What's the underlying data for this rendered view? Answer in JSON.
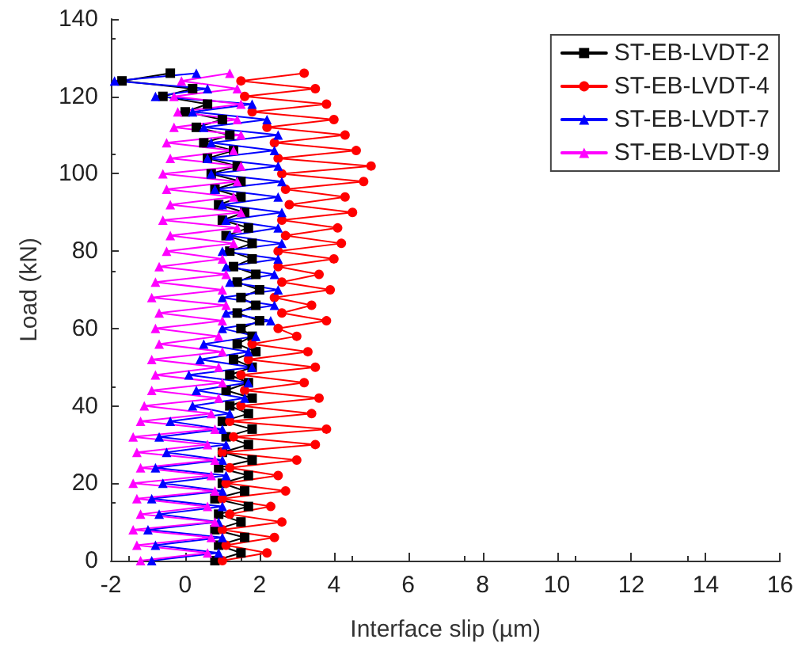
{
  "chart_data": {
    "type": "line",
    "xlabel": "Interface slip (µm)",
    "ylabel": "Load (kN)",
    "xlim": [
      -2,
      16
    ],
    "xticks": [
      -2,
      0,
      2,
      4,
      6,
      8,
      10,
      12,
      14,
      16
    ],
    "ylim": [
      0,
      140
    ],
    "yticks": [
      0,
      20,
      40,
      60,
      80,
      100,
      120,
      140
    ],
    "grid": false,
    "legend": "top right",
    "line_style": "solid",
    "series": [
      {
        "name": "ST-EB-LVDT-2",
        "color": "#000000",
        "marker": "square",
        "x": [
          0.8,
          1.5,
          0.9,
          1.6,
          0.8,
          1.5,
          0.9,
          1.7,
          0.8,
          1.6,
          1.0,
          1.7,
          0.9,
          1.8,
          1.0,
          1.7,
          1.1,
          1.8,
          1.0,
          1.7,
          1.2,
          1.8,
          1.1,
          1.7,
          1.2,
          1.8,
          1.3,
          1.9,
          1.4,
          1.8,
          1.5,
          2.0,
          1.4,
          1.9,
          1.5,
          2.0,
          1.4,
          1.9,
          1.3,
          1.8,
          1.2,
          1.8,
          1.1,
          1.7,
          1.0,
          1.6,
          0.9,
          1.5,
          0.8,
          1.5,
          0.7,
          1.4,
          0.6,
          1.3,
          0.5,
          1.2,
          0.3,
          1.0,
          0.0,
          0.6,
          -0.6,
          0.2,
          -1.7,
          -0.4
        ],
        "values": [
          0,
          2,
          4,
          6,
          8,
          10,
          12,
          14,
          16,
          18,
          20,
          22,
          24,
          26,
          28,
          30,
          32,
          34,
          36,
          38,
          40,
          42,
          44,
          46,
          48,
          50,
          52,
          54,
          56,
          58,
          60,
          62,
          64,
          66,
          68,
          70,
          72,
          74,
          76,
          78,
          80,
          82,
          84,
          86,
          88,
          90,
          92,
          94,
          96,
          98,
          100,
          102,
          104,
          106,
          108,
          110,
          112,
          114,
          116,
          118,
          120,
          122,
          124,
          126
        ]
      },
      {
        "name": "ST-EB-LVDT-4",
        "color": "#ff0000",
        "marker": "circle",
        "x": [
          1.0,
          2.2,
          1.1,
          2.4,
          1.0,
          2.6,
          1.2,
          2.3,
          1.0,
          2.7,
          1.1,
          2.5,
          1.2,
          3.0,
          1.0,
          3.5,
          1.3,
          3.8,
          1.2,
          3.4,
          1.5,
          3.6,
          1.6,
          3.2,
          1.5,
          3.5,
          1.7,
          3.3,
          1.8,
          3.0,
          2.5,
          3.8,
          2.6,
          3.4,
          2.4,
          3.9,
          2.6,
          3.6,
          2.5,
          4.0,
          2.5,
          4.2,
          2.7,
          4.1,
          2.6,
          4.5,
          2.8,
          4.3,
          2.7,
          4.8,
          2.6,
          5.0,
          2.5,
          4.6,
          2.4,
          4.3,
          2.2,
          4.0,
          1.8,
          3.8,
          1.6,
          3.5,
          1.5,
          3.2
        ],
        "values": [
          0,
          2,
          4,
          6,
          8,
          10,
          12,
          14,
          16,
          18,
          20,
          22,
          24,
          26,
          28,
          30,
          32,
          34,
          36,
          38,
          40,
          42,
          44,
          46,
          48,
          50,
          52,
          54,
          56,
          58,
          60,
          62,
          64,
          66,
          68,
          70,
          72,
          74,
          76,
          78,
          80,
          82,
          84,
          86,
          88,
          90,
          92,
          94,
          96,
          98,
          100,
          102,
          104,
          106,
          108,
          110,
          112,
          114,
          116,
          118,
          120,
          122,
          124,
          126
        ]
      },
      {
        "name": "ST-EB-LVDT-7",
        "color": "#0000ff",
        "marker": "triangle",
        "x": [
          -0.9,
          0.9,
          -0.8,
          1.0,
          -1.0,
          0.9,
          -0.7,
          1.0,
          -0.9,
          1.0,
          -0.6,
          1.1,
          -0.8,
          1.0,
          -0.5,
          1.1,
          -0.7,
          1.0,
          -0.4,
          1.2,
          0.2,
          1.6,
          0.3,
          1.7,
          0.1,
          1.8,
          0.4,
          1.7,
          0.5,
          1.9,
          1.0,
          2.3,
          1.1,
          2.4,
          1.0,
          2.5,
          1.2,
          2.4,
          1.1,
          2.5,
          1.0,
          2.6,
          1.2,
          2.5,
          1.1,
          2.6,
          1.0,
          2.5,
          0.8,
          2.6,
          0.7,
          2.5,
          0.6,
          2.4,
          0.7,
          2.5,
          0.5,
          2.2,
          0.2,
          1.8,
          -0.8,
          0.6,
          -1.9,
          0.3
        ],
        "values": [
          0,
          2,
          4,
          6,
          8,
          10,
          12,
          14,
          16,
          18,
          20,
          22,
          24,
          26,
          28,
          30,
          32,
          34,
          36,
          38,
          40,
          42,
          44,
          46,
          48,
          50,
          52,
          54,
          56,
          58,
          60,
          62,
          64,
          66,
          68,
          70,
          72,
          74,
          76,
          78,
          80,
          82,
          84,
          86,
          88,
          90,
          92,
          94,
          96,
          98,
          100,
          102,
          104,
          106,
          108,
          110,
          112,
          114,
          116,
          118,
          120,
          122,
          124,
          126
        ]
      },
      {
        "name": "ST-EB-LVDT-9",
        "color": "#ff00ff",
        "marker": "triangle",
        "x": [
          -1.2,
          0.6,
          -1.3,
          0.7,
          -1.4,
          0.8,
          -1.2,
          0.6,
          -1.3,
          0.8,
          -1.4,
          0.7,
          -1.2,
          0.8,
          -1.3,
          0.6,
          -1.4,
          0.8,
          -1.2,
          0.7,
          -1.1,
          0.9,
          -0.9,
          1.0,
          -0.8,
          0.9,
          -0.9,
          1.0,
          -0.7,
          0.9,
          -0.8,
          1.0,
          -0.7,
          1.1,
          -0.9,
          1.0,
          -0.8,
          1.1,
          -0.7,
          1.0,
          -0.5,
          1.3,
          -0.4,
          1.4,
          -0.6,
          1.5,
          -0.4,
          1.3,
          -0.5,
          1.4,
          -0.6,
          1.5,
          -0.4,
          1.3,
          -0.5,
          1.5,
          -0.3,
          1.4,
          -0.2,
          1.5,
          -0.3,
          1.4,
          -0.1,
          1.2
        ],
        "values": [
          0,
          2,
          4,
          6,
          8,
          10,
          12,
          14,
          16,
          18,
          20,
          22,
          24,
          26,
          28,
          30,
          32,
          34,
          36,
          38,
          40,
          42,
          44,
          46,
          48,
          50,
          52,
          54,
          56,
          58,
          60,
          62,
          64,
          66,
          68,
          70,
          72,
          74,
          76,
          78,
          80,
          82,
          84,
          86,
          88,
          90,
          92,
          94,
          96,
          98,
          100,
          102,
          104,
          106,
          108,
          110,
          112,
          114,
          116,
          118,
          120,
          122,
          124,
          126
        ]
      }
    ]
  }
}
